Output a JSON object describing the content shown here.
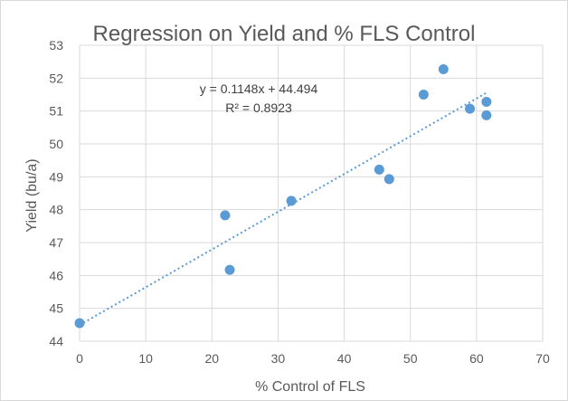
{
  "chart_data": {
    "type": "scatter",
    "title": "Regression on Yield and % FLS Control",
    "xlabel": "% Control of FLS",
    "ylabel": "Yield (bu/a)",
    "xlim": [
      0,
      70
    ],
    "ylim": [
      44,
      53
    ],
    "x_ticks": [
      "0",
      "10",
      "20",
      "30",
      "40",
      "50",
      "60",
      "70"
    ],
    "y_ticks": [
      "44",
      "45",
      "46",
      "47",
      "48",
      "49",
      "50",
      "51",
      "52",
      "53"
    ],
    "grid": true,
    "legend": "none",
    "points": [
      {
        "x": 0,
        "y": 44.55
      },
      {
        "x": 22,
        "y": 47.83
      },
      {
        "x": 22.7,
        "y": 46.17
      },
      {
        "x": 32,
        "y": 48.27
      },
      {
        "x": 45.3,
        "y": 49.22
      },
      {
        "x": 46.8,
        "y": 48.93
      },
      {
        "x": 52,
        "y": 51.5
      },
      {
        "x": 55,
        "y": 52.27
      },
      {
        "x": 59,
        "y": 51.07
      },
      {
        "x": 61.5,
        "y": 51.28
      },
      {
        "x": 61.5,
        "y": 50.87
      }
    ],
    "trendline": {
      "type": "linear",
      "slope": 0.1148,
      "intercept": 44.494,
      "x_range": [
        0,
        61.5
      ],
      "equation_label": "y = 0.1148x + 44.494",
      "r2_label": "R² = 0.8923"
    },
    "colors": {
      "marker": "#5B9BD5",
      "trendline": "#5B9BD5",
      "gridline": "#d9d9d9",
      "text": "#595959"
    }
  }
}
